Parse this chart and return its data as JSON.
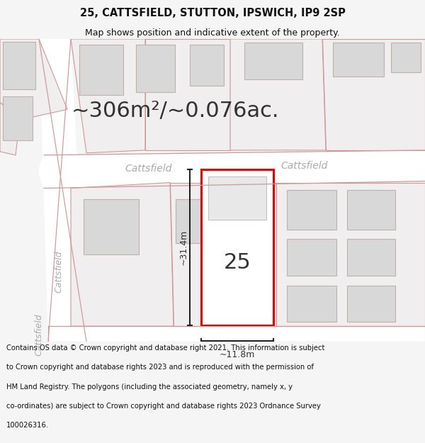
{
  "title_line1": "25, CATTSFIELD, STUTTON, IPSWICH, IP9 2SP",
  "title_line2": "Map shows position and indicative extent of the property.",
  "area_text": "~306m²/~0.076ac.",
  "number_label": "25",
  "dim_height": "~31.4m",
  "dim_width": "~11.8m",
  "road_label_1": "Cattsfield",
  "road_label_2": "Cattsfield",
  "road_label_3": "Cattsfield",
  "road_label_4": "Cattsfield",
  "footer_lines": [
    "Contains OS data © Crown copyright and database right 2021. This information is subject",
    "to Crown copyright and database rights 2023 and is reproduced with the permission of",
    "HM Land Registry. The polygons (including the associated geometry, namely x, y",
    "co-ordinates) are subject to Crown copyright and database rights 2023 Ordnance Survey",
    "100026316."
  ],
  "bg_color": "#f5f5f5",
  "map_bg": "#f0eeee",
  "plot_color": "#ffffff",
  "building_fill": "#d8d8d8",
  "building_edge": "#c0b0b0",
  "red_outline": "#dd0000",
  "dim_line_color": "#222222",
  "road_fill": "#ffffff",
  "road_stroke": "#cc9999",
  "text_color": "#333333",
  "footer_color": "#111111",
  "road_label_color": "#aaaaaa"
}
